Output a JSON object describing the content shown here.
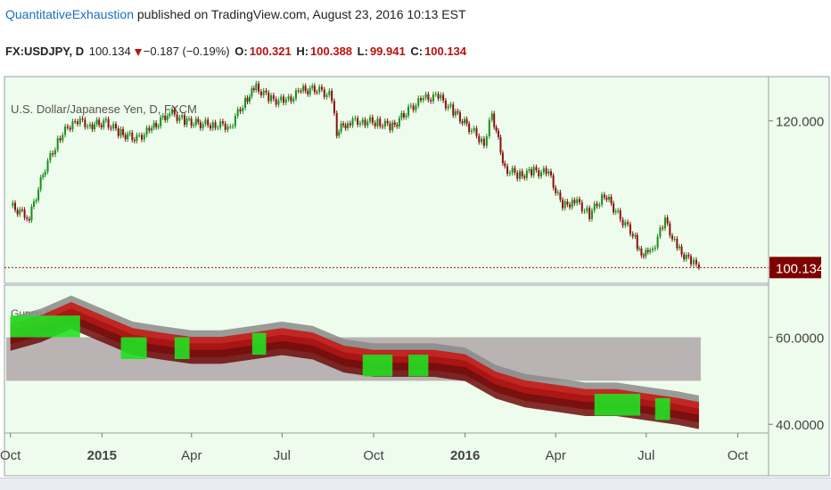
{
  "header": {
    "author": "QuantitativeExhaustion",
    "published": "published on TradingView.com, August 23, 2016 10:13 EST"
  },
  "ticker": {
    "symbol": "FX:USDJPY, D",
    "price": "100.134",
    "change": "−0.187 (−0.19%)",
    "open_label": "O:",
    "open": "100.321",
    "high_label": "H:",
    "high": "100.388",
    "low_label": "L:",
    "low": "99.941",
    "close_label": "C:",
    "close": "100.134"
  },
  "colors": {
    "background": "#edfcec",
    "candle_up": "#1b8f1b",
    "candle_down": "#8b0f0f",
    "price_tag": "#7f0000",
    "guppy_green": "#22e022",
    "guppy_red": "#c8140f",
    "guppy_zone": "#b9b3b3"
  },
  "chart_data": [
    {
      "type": "line",
      "title": "U.S. Dollar/Japanese Yen, D, FXCM",
      "x": [
        "2014-10-01",
        "2014-10-20",
        "2014-11-05",
        "2014-11-20",
        "2014-12-05",
        "2014-12-20",
        "2015-01-05",
        "2015-01-20",
        "2015-02-05",
        "2015-02-20",
        "2015-03-10",
        "2015-03-25",
        "2015-04-10",
        "2015-04-25",
        "2015-05-10",
        "2015-05-25",
        "2015-06-05",
        "2015-06-20",
        "2015-07-05",
        "2015-07-20",
        "2015-08-05",
        "2015-08-20",
        "2015-08-25",
        "2015-09-05",
        "2015-09-20",
        "2015-10-05",
        "2015-10-20",
        "2015-11-05",
        "2015-11-20",
        "2015-12-05",
        "2015-12-20",
        "2016-01-05",
        "2016-01-20",
        "2016-01-28",
        "2016-02-10",
        "2016-02-25",
        "2016-03-10",
        "2016-03-25",
        "2016-04-08",
        "2016-04-20",
        "2016-05-05",
        "2016-05-20",
        "2016-06-05",
        "2016-06-20",
        "2016-06-24",
        "2016-07-05",
        "2016-07-20",
        "2016-08-01",
        "2016-08-15",
        "2016-08-23"
      ],
      "y": [
        108.5,
        106.9,
        113.7,
        117.9,
        120.2,
        119.4,
        119.8,
        118.3,
        117.6,
        118.9,
        121.2,
        120.0,
        119.6,
        119.5,
        119.3,
        122.8,
        124.5,
        122.9,
        122.6,
        124.1,
        124.3,
        123.3,
        118.5,
        119.9,
        120.0,
        119.8,
        119.2,
        121.5,
        123.0,
        123.3,
        121.3,
        119.1,
        117.0,
        121.0,
        113.5,
        112.6,
        113.2,
        112.9,
        108.3,
        109.3,
        107.3,
        110.1,
        106.8,
        104.3,
        102.2,
        101.9,
        106.5,
        102.7,
        100.9,
        100.134
      ],
      "yaxis_ticks": [
        "120.000"
      ],
      "last_price": "100.134",
      "xaxis_ticks": [
        "Oct",
        "2015",
        "Apr",
        "Jul",
        "Oct",
        "2016",
        "Apr",
        "Jul",
        "Oct"
      ]
    },
    {
      "type": "area",
      "title": "Guppy RSI",
      "x": [
        "2014-10-01",
        "2014-11-01",
        "2014-12-01",
        "2015-01-01",
        "2015-02-01",
        "2015-03-01",
        "2015-04-01",
        "2015-05-01",
        "2015-06-01",
        "2015-07-01",
        "2015-08-01",
        "2015-09-01",
        "2015-10-01",
        "2015-11-01",
        "2015-12-01",
        "2016-01-01",
        "2016-02-01",
        "2016-03-01",
        "2016-04-01",
        "2016-05-01",
        "2016-06-01",
        "2016-07-01",
        "2016-08-01",
        "2016-08-23"
      ],
      "y": [
        60,
        62,
        65,
        62,
        59,
        58,
        57,
        57,
        58,
        59,
        58,
        55,
        54,
        54,
        54,
        53,
        49,
        47,
        46,
        45,
        45,
        44,
        43,
        42
      ],
      "zone": [
        50,
        60
      ],
      "yaxis_ticks": [
        "60.0000",
        "40.0000"
      ]
    }
  ]
}
